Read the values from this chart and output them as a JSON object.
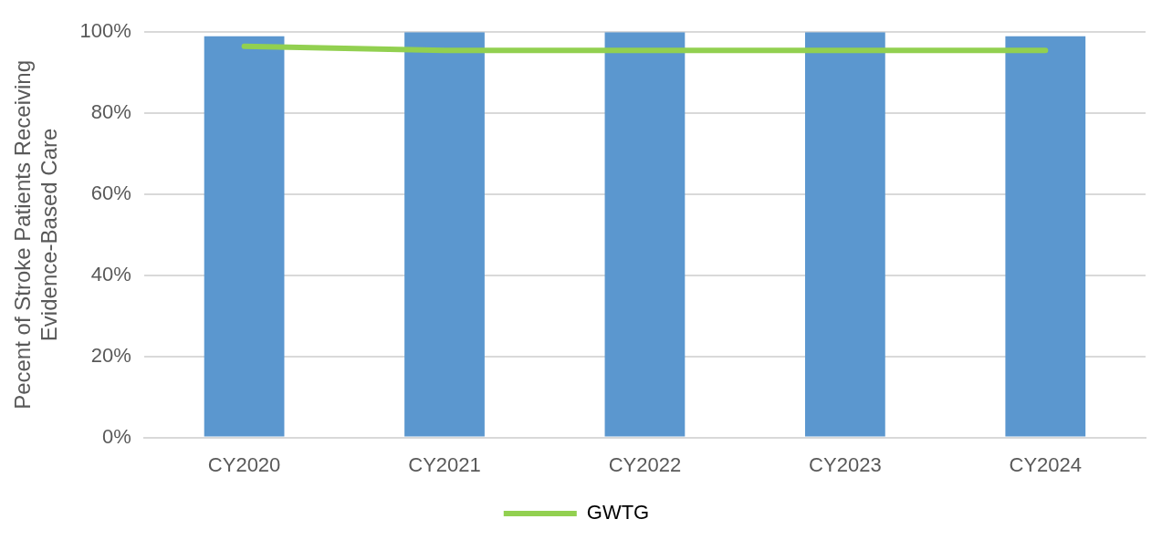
{
  "chart_data": {
    "type": "bar",
    "ylabel": "Pecent of Stroke Patients Receiving\nEvidence-Based Care",
    "categories": [
      "CY2020",
      "CY2021",
      "CY2022",
      "CY2023",
      "CY2024"
    ],
    "series": [
      {
        "color": "#5b97cf",
        "values": [
          99,
          100,
          100,
          100,
          99
        ]
      },
      {
        "type": "line",
        "name": "GWTG",
        "color": "#92d050",
        "values": [
          96.5,
          95.5,
          95.5,
          95.5,
          95.5
        ]
      }
    ],
    "ylim": [
      0,
      100
    ],
    "yticks": [
      {
        "value": 0,
        "label": "0%"
      },
      {
        "value": 20,
        "label": "20%"
      },
      {
        "value": 40,
        "label": "40%"
      },
      {
        "value": 60,
        "label": "60%"
      },
      {
        "value": 80,
        "label": "80%"
      },
      {
        "value": 100,
        "label": "100%"
      }
    ],
    "grid": "y",
    "legend": "bottom",
    "marker": "none"
  }
}
